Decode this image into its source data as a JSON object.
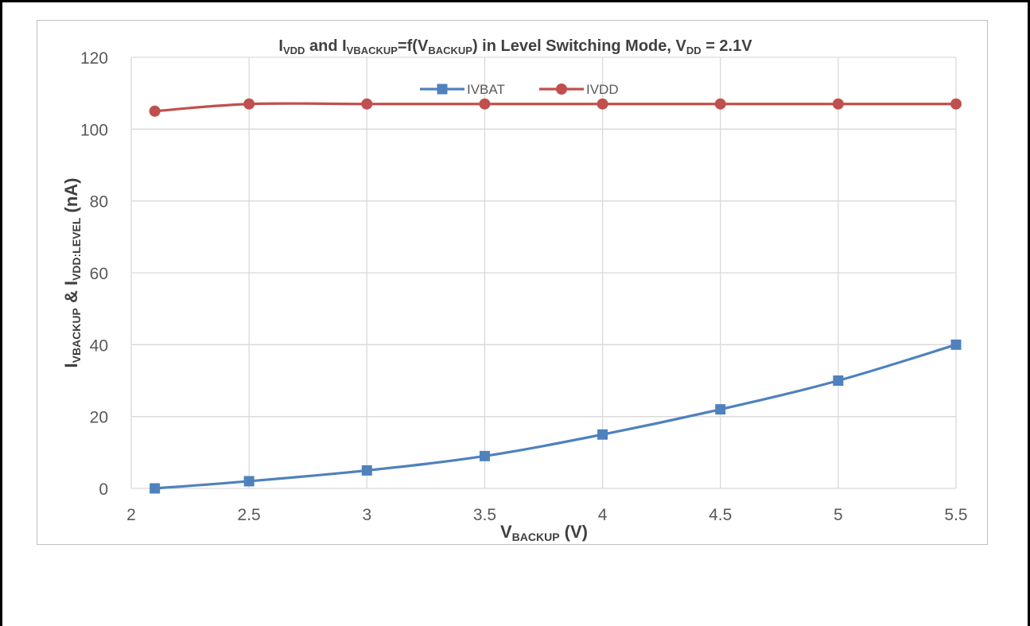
{
  "chart_data": {
    "type": "line",
    "title": {
      "parts": [
        {
          "text": "I",
          "sub": false
        },
        {
          "text": "VDD",
          "sub": true
        },
        {
          "text": " and I",
          "sub": false
        },
        {
          "text": "VBACKUP",
          "sub": true
        },
        {
          "text": "=f(V",
          "sub": false
        },
        {
          "text": "BACKUP",
          "sub": true
        },
        {
          "text": ") in Level Switching Mode, V",
          "sub": false
        },
        {
          "text": "DD",
          "sub": true
        },
        {
          "text": " = 2.1V",
          "sub": false
        }
      ]
    },
    "xlabel": {
      "parts": [
        {
          "text": "V",
          "sub": false
        },
        {
          "text": "BACKUP",
          "sub": true
        },
        {
          "text": " (V)",
          "sub": false
        }
      ]
    },
    "ylabel": {
      "parts": [
        {
          "text": "I",
          "sub": false
        },
        {
          "text": "VBACKUP",
          "sub": true
        },
        {
          "text": " & I",
          "sub": false
        },
        {
          "text": "VDD:LEVEL",
          "sub": true
        },
        {
          "text": " (nA)",
          "sub": false
        }
      ]
    },
    "xlim": [
      2,
      5.5
    ],
    "ylim": [
      0,
      120
    ],
    "x_ticks": [
      "2",
      "2.5",
      "3",
      "3.5",
      "4",
      "4.5",
      "5",
      "5.5"
    ],
    "y_ticks": [
      "0",
      "20",
      "40",
      "60",
      "80",
      "100",
      "120"
    ],
    "grid": true,
    "legend_position": "top-center",
    "x": [
      2.1,
      2.5,
      3,
      3.5,
      4,
      4.5,
      5,
      5.5
    ],
    "series": [
      {
        "name": "IVBAT",
        "marker": "square",
        "color": "#4f81bd",
        "values": [
          0,
          2,
          5,
          9,
          15,
          22,
          30,
          40
        ]
      },
      {
        "name": "IVDD",
        "marker": "circle",
        "color": "#c0504d",
        "values": [
          105,
          107,
          107,
          107,
          107,
          107,
          107,
          107
        ]
      }
    ]
  }
}
